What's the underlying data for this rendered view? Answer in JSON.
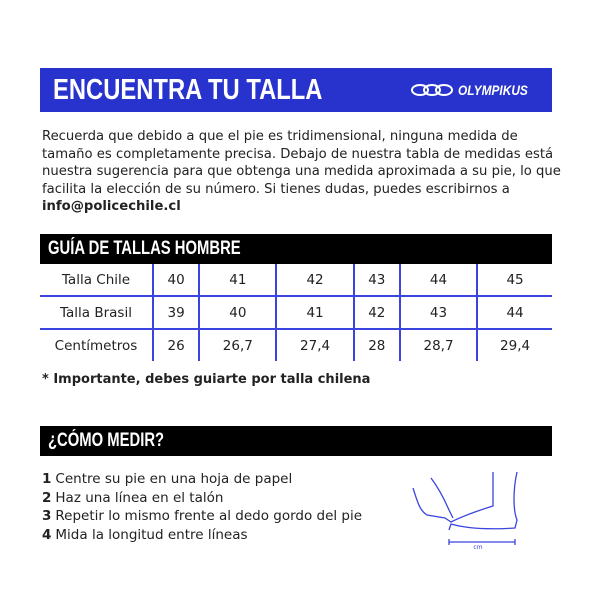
{
  "header": {
    "title": "ENCUENTRA TU TALLA",
    "brand": "OLYMPIKUS",
    "brand_color": "#2733cc"
  },
  "intro": {
    "text": "Recuerda que debido a que el pie es tridimensional, ninguna medida de tamaño es completamente precisa. Debajo de nuestra tabla de medidas está nuestra sugerencia para que obtenga una medida aproximada a su pie, lo que facilita la elección de su número. Si tienes dudas, puedes escribirnos a ",
    "email": "info@policechile.cl"
  },
  "size_guide": {
    "title": "GUÍA DE TALLAS HOMBRE",
    "rows": [
      {
        "label": "Talla Chile",
        "values": [
          "40",
          "41",
          "42",
          "43",
          "44",
          "45"
        ]
      },
      {
        "label": "Talla Brasil",
        "values": [
          "39",
          "40",
          "41",
          "42",
          "43",
          "44"
        ]
      },
      {
        "label": "Centímetros",
        "values": [
          "26",
          "26,7",
          "27,4",
          "28",
          "28,7",
          "29,4"
        ]
      }
    ],
    "note": "* Importante, debes guiarte por talla chilena"
  },
  "how_to": {
    "title": "¿CÓMO MEDIR?",
    "steps": [
      {
        "n": "1",
        "text": "Centre su pie en una hoja de papel"
      },
      {
        "n": "2",
        "text": "Haz una línea en el talón"
      },
      {
        "n": "3",
        "text": "Repetir lo mismo frente al dedo gordo del pie"
      },
      {
        "n": "4",
        "text": "Mida la longitud entre líneas"
      }
    ],
    "illustration_label": "cm"
  }
}
